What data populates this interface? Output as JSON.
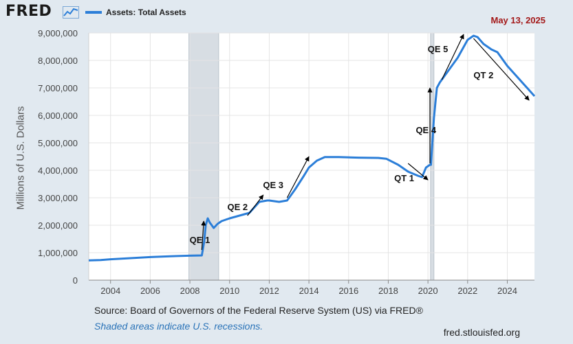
{
  "header": {
    "logo": "FRED",
    "logo_icon": "line-chart-icon",
    "series_name": "Assets: Total Assets",
    "date": "May 13, 2025"
  },
  "footer": {
    "source": "Source: Board of Governors of the Federal Reserve System (US) via FRED®",
    "recessions": "Shaded areas indicate U.S. recessions.",
    "url": "fred.stlouisfed.org"
  },
  "colors": {
    "series": "#2b7ed8",
    "recession": "#d7dde3",
    "background": "#e1e9f0",
    "plot": "#ffffff",
    "date": "#a31818"
  },
  "chart_data": {
    "type": "line",
    "ylabel": "Millions of U.S. Dollars",
    "xlabel": "",
    "xlim": [
      2002.9,
      2025.37
    ],
    "ylim": [
      0,
      9000000
    ],
    "x_ticks": [
      "2004",
      "2006",
      "2008",
      "2010",
      "2012",
      "2014",
      "2016",
      "2018",
      "2020",
      "2022",
      "2024"
    ],
    "y_ticks": [
      "0",
      "1,000,000",
      "2,000,000",
      "3,000,000",
      "4,000,000",
      "5,000,000",
      "6,000,000",
      "7,000,000",
      "8,000,000",
      "9,000,000"
    ],
    "grid": true,
    "recessions": [
      [
        2007.95,
        2009.45
      ],
      [
        2020.13,
        2020.3
      ]
    ],
    "series": [
      {
        "name": "Assets: Total Assets",
        "x": [
          2002.9,
          2003.5,
          2004.0,
          2005.0,
          2006.0,
          2007.0,
          2007.95,
          2008.6,
          2008.72,
          2008.8,
          2008.9,
          2009.0,
          2009.2,
          2009.4,
          2009.6,
          2009.8,
          2010.0,
          2010.5,
          2011.0,
          2011.5,
          2011.9,
          2012.0,
          2012.5,
          2012.9,
          2013.3,
          2013.7,
          2014.0,
          2014.4,
          2014.8,
          2015.5,
          2016.5,
          2017.5,
          2017.9,
          2018.5,
          2019.0,
          2019.5,
          2019.7,
          2019.9,
          2020.1,
          2020.15,
          2020.3,
          2020.45,
          2020.6,
          2021.0,
          2021.5,
          2022.0,
          2022.3,
          2022.5,
          2022.8,
          2023.0,
          2023.2,
          2023.5,
          2024.0,
          2024.5,
          2025.0,
          2025.37
        ],
        "values": [
          720000,
          730000,
          760000,
          800000,
          840000,
          870000,
          890000,
          900000,
          1400000,
          2000000,
          2250000,
          2100000,
          1900000,
          2050000,
          2150000,
          2200000,
          2250000,
          2350000,
          2450000,
          2850000,
          2900000,
          2900000,
          2850000,
          2900000,
          3300000,
          3750000,
          4100000,
          4350000,
          4480000,
          4480000,
          4460000,
          4450000,
          4420000,
          4200000,
          3950000,
          3800000,
          3750000,
          4100000,
          4200000,
          4200000,
          5900000,
          7000000,
          7200000,
          7600000,
          8100000,
          8750000,
          8900000,
          8850000,
          8600000,
          8500000,
          8400000,
          8300000,
          7800000,
          7400000,
          7000000,
          6700000
        ]
      }
    ],
    "annotations": [
      {
        "text": "QE 1",
        "x": 2008.5,
        "y": 1350000,
        "arrow_from": [
          2008.6,
          1100000
        ],
        "arrow_to": [
          2008.7,
          2150000
        ]
      },
      {
        "text": "QE 2",
        "x": 2010.4,
        "y": 2550000,
        "arrow_from": [
          2010.9,
          2350000
        ],
        "arrow_to": [
          2011.7,
          3100000
        ]
      },
      {
        "text": "QE 3",
        "x": 2012.2,
        "y": 3350000,
        "arrow_from": [
          2012.9,
          3000000
        ],
        "arrow_to": [
          2014.0,
          4500000
        ]
      },
      {
        "text": "QT 1",
        "x": 2018.8,
        "y": 3600000,
        "arrow_from": [
          2019.0,
          4250000
        ],
        "arrow_to": [
          2020.0,
          3650000
        ]
      },
      {
        "text": "QE 4",
        "x": 2019.9,
        "y": 5350000,
        "arrow_from": [
          2020.1,
          4250000
        ],
        "arrow_to": [
          2020.1,
          7000000
        ]
      },
      {
        "text": "QE 5",
        "x": 2020.5,
        "y": 8300000,
        "arrow_from": [
          2020.7,
          7300000
        ],
        "arrow_to": [
          2021.8,
          8950000
        ]
      },
      {
        "text": "QT 2",
        "x": 2022.8,
        "y": 7350000,
        "arrow_from": [
          2022.3,
          8800000
        ],
        "arrow_to": [
          2025.1,
          6550000
        ]
      }
    ]
  }
}
